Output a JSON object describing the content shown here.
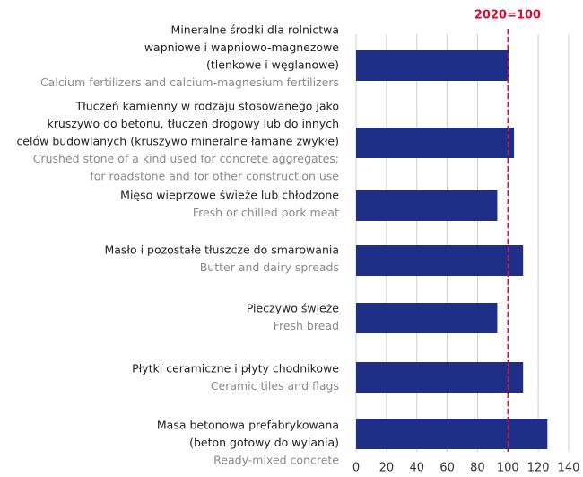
{
  "chart_data": {
    "type": "bar",
    "orientation": "horizontal",
    "annotation": "2020=100",
    "reference_line": 100,
    "reference_color": "#d21034",
    "color": "#1f2f87",
    "grid": true,
    "categories": [
      {
        "pl": [
          "Mineralne środki dla rolnictwa",
          "wapniowe i wapniowo-magnezowe",
          "(tlenkowe i węglanowe)"
        ],
        "en": [
          "Calcium fertilizers and calcium-magnesium fertilizers"
        ]
      },
      {
        "pl": [
          "Tłuczeń kamienny w rodzaju stosowanego jako",
          "kruszywo do betonu, tłuczeń drogowy lub do innych",
          "celów budowlanych (kruszywo mineralne łamane zwykłe)"
        ],
        "en": [
          "Crushed stone of a kind used for concrete aggregates;",
          "for roadstone and for other construction use"
        ]
      },
      {
        "pl": [
          "Mięso wieprzowe świeże lub chłodzone"
        ],
        "en": [
          "Fresh or chilled pork meat"
        ]
      },
      {
        "pl": [
          "Masło i pozostałe tłuszcze do smarowania"
        ],
        "en": [
          "Butter and dairy spreads"
        ]
      },
      {
        "pl": [
          "Pieczywo świeże"
        ],
        "en": [
          "Fresh bread"
        ]
      },
      {
        "pl": [
          "Płytki ceramiczne i płyty chodnikowe"
        ],
        "en": [
          "Ceramic tiles and flags"
        ]
      },
      {
        "pl": [
          "Masa betonowa prefabrykowana",
          "(beton gotowy do wylania)"
        ],
        "en": [
          "Ready-mixed concrete"
        ]
      }
    ],
    "values": [
      101,
      104,
      93,
      110,
      93,
      110,
      126
    ],
    "xlim": [
      0,
      140
    ],
    "xticks": [
      0,
      20,
      40,
      60,
      80,
      100,
      120,
      140
    ]
  }
}
